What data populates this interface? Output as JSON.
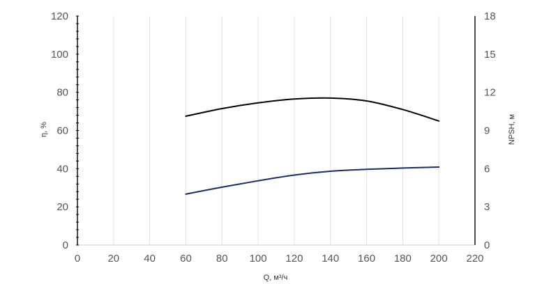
{
  "chart_data": {
    "type": "line",
    "title": "",
    "xlabel": "Q, м³/ч",
    "ylabel": "η, %",
    "y2label": "NPSH, м",
    "xlim": [
      0,
      220
    ],
    "ylim": [
      0,
      120
    ],
    "y2lim": [
      0,
      18
    ],
    "x_ticks": [
      "0",
      "20",
      "40",
      "60",
      "80",
      "100",
      "120",
      "140",
      "160",
      "180",
      "200",
      "220"
    ],
    "y_ticks": [
      "0",
      "20",
      "40",
      "60",
      "80",
      "100",
      "120"
    ],
    "y2_ticks": [
      "0",
      "3",
      "6",
      "9",
      "12",
      "15",
      "18"
    ],
    "grid": "vertical",
    "legend": "none",
    "series": [
      {
        "axis": "left",
        "color": "#000000",
        "x": [
          60,
          80,
          100,
          120,
          140,
          160,
          180,
          200
        ],
        "y": [
          67.5,
          71.5,
          74.5,
          76.5,
          77,
          75.5,
          71,
          65
        ]
      },
      {
        "axis": "right",
        "color": "#1a2a6b",
        "x": [
          60,
          80,
          100,
          120,
          140,
          160,
          180,
          200
        ],
        "y": [
          4,
          4.55,
          5.05,
          5.5,
          5.8,
          5.95,
          6.05,
          6.13
        ]
      }
    ]
  }
}
